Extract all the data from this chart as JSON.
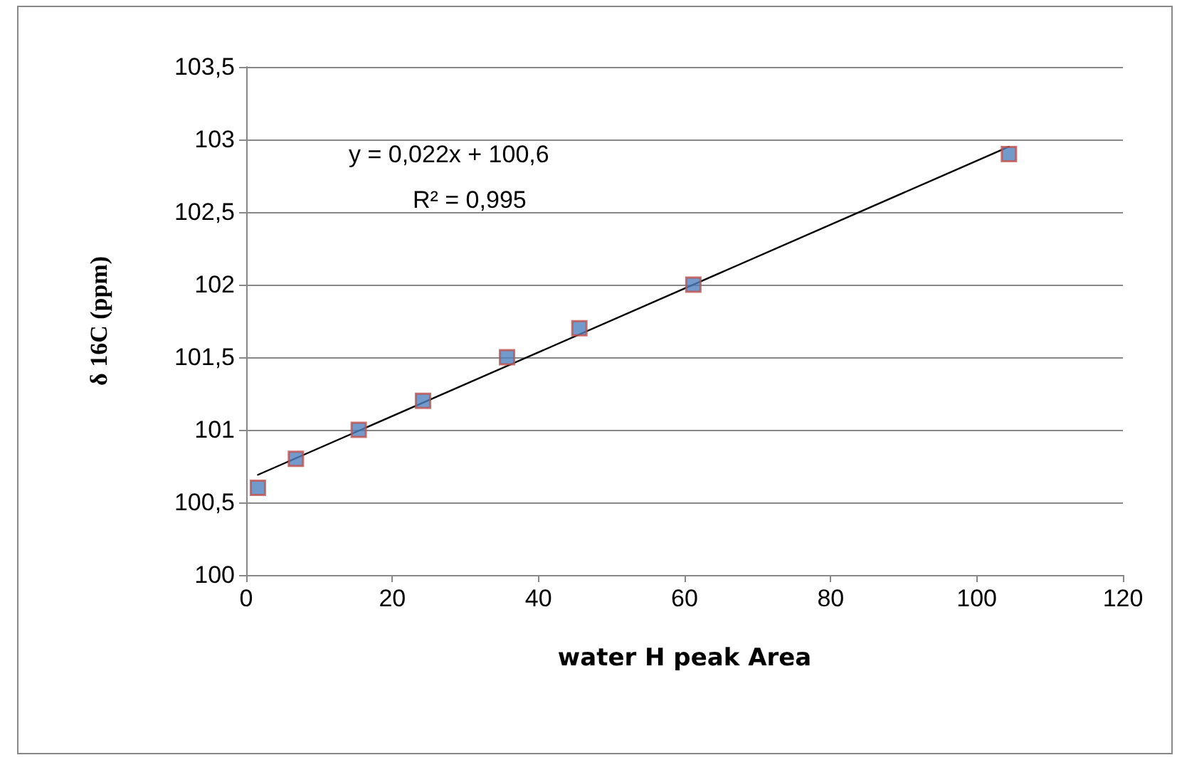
{
  "chart_data": {
    "type": "scatter",
    "xlabel": "water H peak Area",
    "ylabel": "δ 16C (ppm)",
    "x": [
      1.6,
      6.8,
      15.4,
      24.2,
      35.7,
      45.6,
      61.2,
      104.4
    ],
    "series": [
      {
        "color": "#4f81bd",
        "values": [
          100.6,
          100.8,
          101.0,
          101.2,
          101.5,
          101.7,
          102.0,
          102.9
        ],
        "marker": "square"
      },
      {
        "type": "line",
        "color": "#000000",
        "x": [
          1.6,
          104.4
        ],
        "values": [
          100.69,
          102.95
        ],
        "marker": "none"
      }
    ],
    "xlim": [
      0,
      120
    ],
    "xticks": [
      0,
      20,
      40,
      60,
      80,
      100,
      120
    ],
    "ylim": [
      100,
      103.5
    ],
    "yticks": [
      100,
      {
        "value": 100.5,
        "label": "100,5"
      },
      101,
      {
        "value": 101.5,
        "label": "101,5"
      },
      102,
      {
        "value": 102.5,
        "label": "102,5"
      },
      103,
      {
        "value": 103.5,
        "label": "103,5"
      }
    ],
    "grid": "y",
    "annotations": [
      "y = 0,022x + 100,6",
      "R² = 0,995"
    ]
  }
}
